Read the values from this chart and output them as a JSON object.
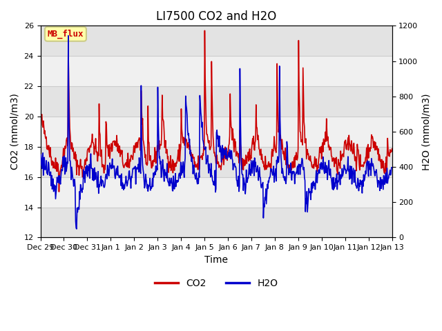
{
  "title": "LI7500 CO2 and H2O",
  "xlabel": "Time",
  "ylabel_left": "CO2 (mmol/m3)",
  "ylabel_right": "H2O (mmol/m3)",
  "ylim_left": [
    12,
    26
  ],
  "ylim_right": [
    0,
    1200
  ],
  "yticks_left": [
    12,
    14,
    16,
    18,
    20,
    22,
    24,
    26
  ],
  "yticks_right": [
    0,
    200,
    400,
    600,
    800,
    1000,
    1200
  ],
  "xticklabels": [
    "Dec 29",
    "Dec 30",
    "Dec 31",
    "Jan 1",
    "Jan 2",
    "Jan 3",
    "Jan 4",
    "Jan 5",
    "Jan 6",
    "Jan 7",
    "Jan 8",
    "Jan 9",
    "Jan 10",
    "Jan 11",
    "Jan 12",
    "Jan 13"
  ],
  "co2_color": "#cc0000",
  "h2o_color": "#0000cc",
  "legend_co2": "CO2",
  "legend_h2o": "H2O",
  "annotation_text": "MB_flux",
  "annotation_bg": "#ffffaa",
  "annotation_border": "#cccc88",
  "grid_color": "#cccccc",
  "bg_color": "#e8e8e8",
  "plot_bg": "#f0f0f0",
  "linewidth": 1.2,
  "title_fontsize": 12,
  "axis_fontsize": 10,
  "tick_fontsize": 8
}
